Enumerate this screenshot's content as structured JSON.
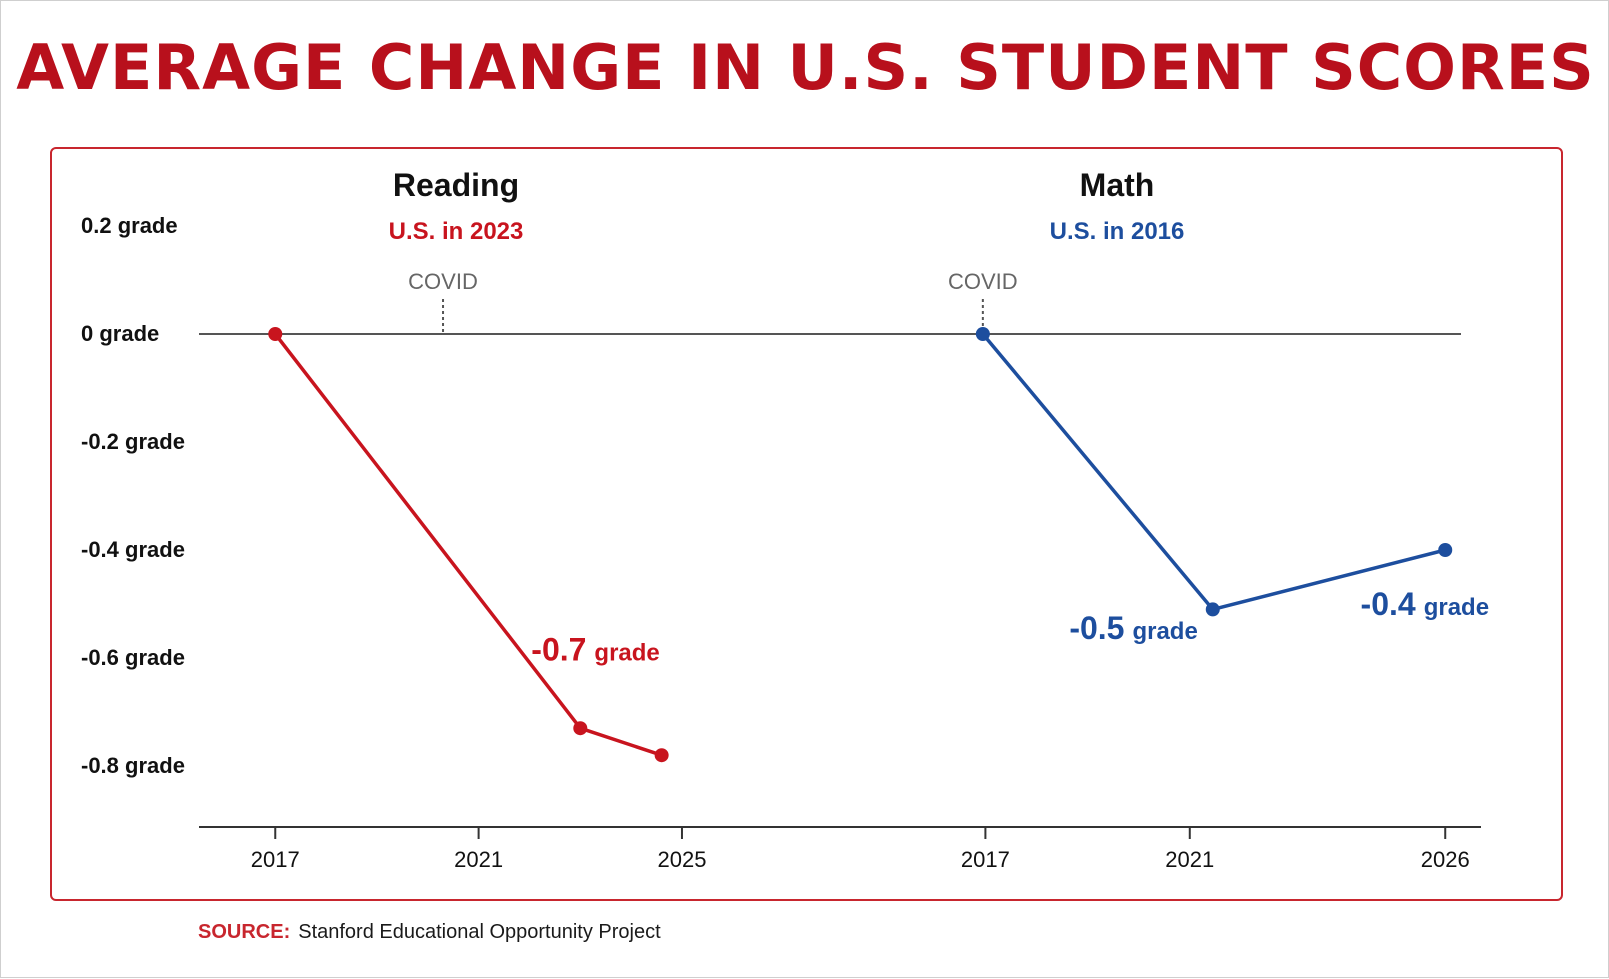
{
  "title": "AVERAGE CHANGE IN U.S. STUDENT SCORES",
  "source": {
    "label": "SOURCE:",
    "text": "Stanford Educational Opportunity Project"
  },
  "colors": {
    "title": "#b8101c",
    "frame": "#c8262e",
    "reading": "#c8141e",
    "math": "#1d4e9e",
    "axis": "#333333",
    "covid": "#666666"
  },
  "chart_data": [
    {
      "type": "line",
      "title": "Reading",
      "subtitle": "U.S. in 2023",
      "ylabel": "",
      "ylim": [
        -0.9,
        0.2
      ],
      "yticks": [
        {
          "value": 0.2,
          "label": "0.2 grade"
        },
        {
          "value": 0.0,
          "label": "0 grade"
        },
        {
          "value": -0.2,
          "label": "-0.2 grade"
        },
        {
          "value": -0.4,
          "label": "-0.4 grade"
        },
        {
          "value": -0.6,
          "label": "-0.6 grade"
        },
        {
          "value": -0.8,
          "label": "-0.8 grade"
        }
      ],
      "xticks": [
        "2017",
        "2021",
        "2025"
      ],
      "xlim": [
        2015.5,
        2029.8
      ],
      "covid": {
        "label": "COVID",
        "x": 2020.3
      },
      "series": [
        {
          "x": [
            2017,
            2023,
            2024.6
          ],
          "values": [
            0,
            -0.73,
            -0.78
          ]
        }
      ],
      "annotation": {
        "value": "-0.7",
        "unit": "grade",
        "x": 2023.3,
        "y": -0.605
      }
    },
    {
      "type": "line",
      "title": "Math",
      "subtitle": "U.S. in 2016",
      "ylabel": "",
      "ylim": [
        -0.9,
        0.2
      ],
      "xticks": [
        "2017",
        "2021",
        "2026"
      ],
      "xlim": [
        2014.8,
        2026.7
      ],
      "covid": {
        "label": "COVID",
        "x": 2016.95
      },
      "series": [
        {
          "x": [
            2016.95,
            2021.45,
            2026
          ],
          "values": [
            0,
            -0.51,
            -0.4
          ]
        }
      ],
      "labels": [
        {
          "value": "-0.5",
          "unit": "grade",
          "x": 2019.9,
          "y": -0.565
        },
        {
          "value": "-0.4",
          "unit": "grade",
          "x": 2025.6,
          "y": -0.52
        }
      ]
    }
  ]
}
